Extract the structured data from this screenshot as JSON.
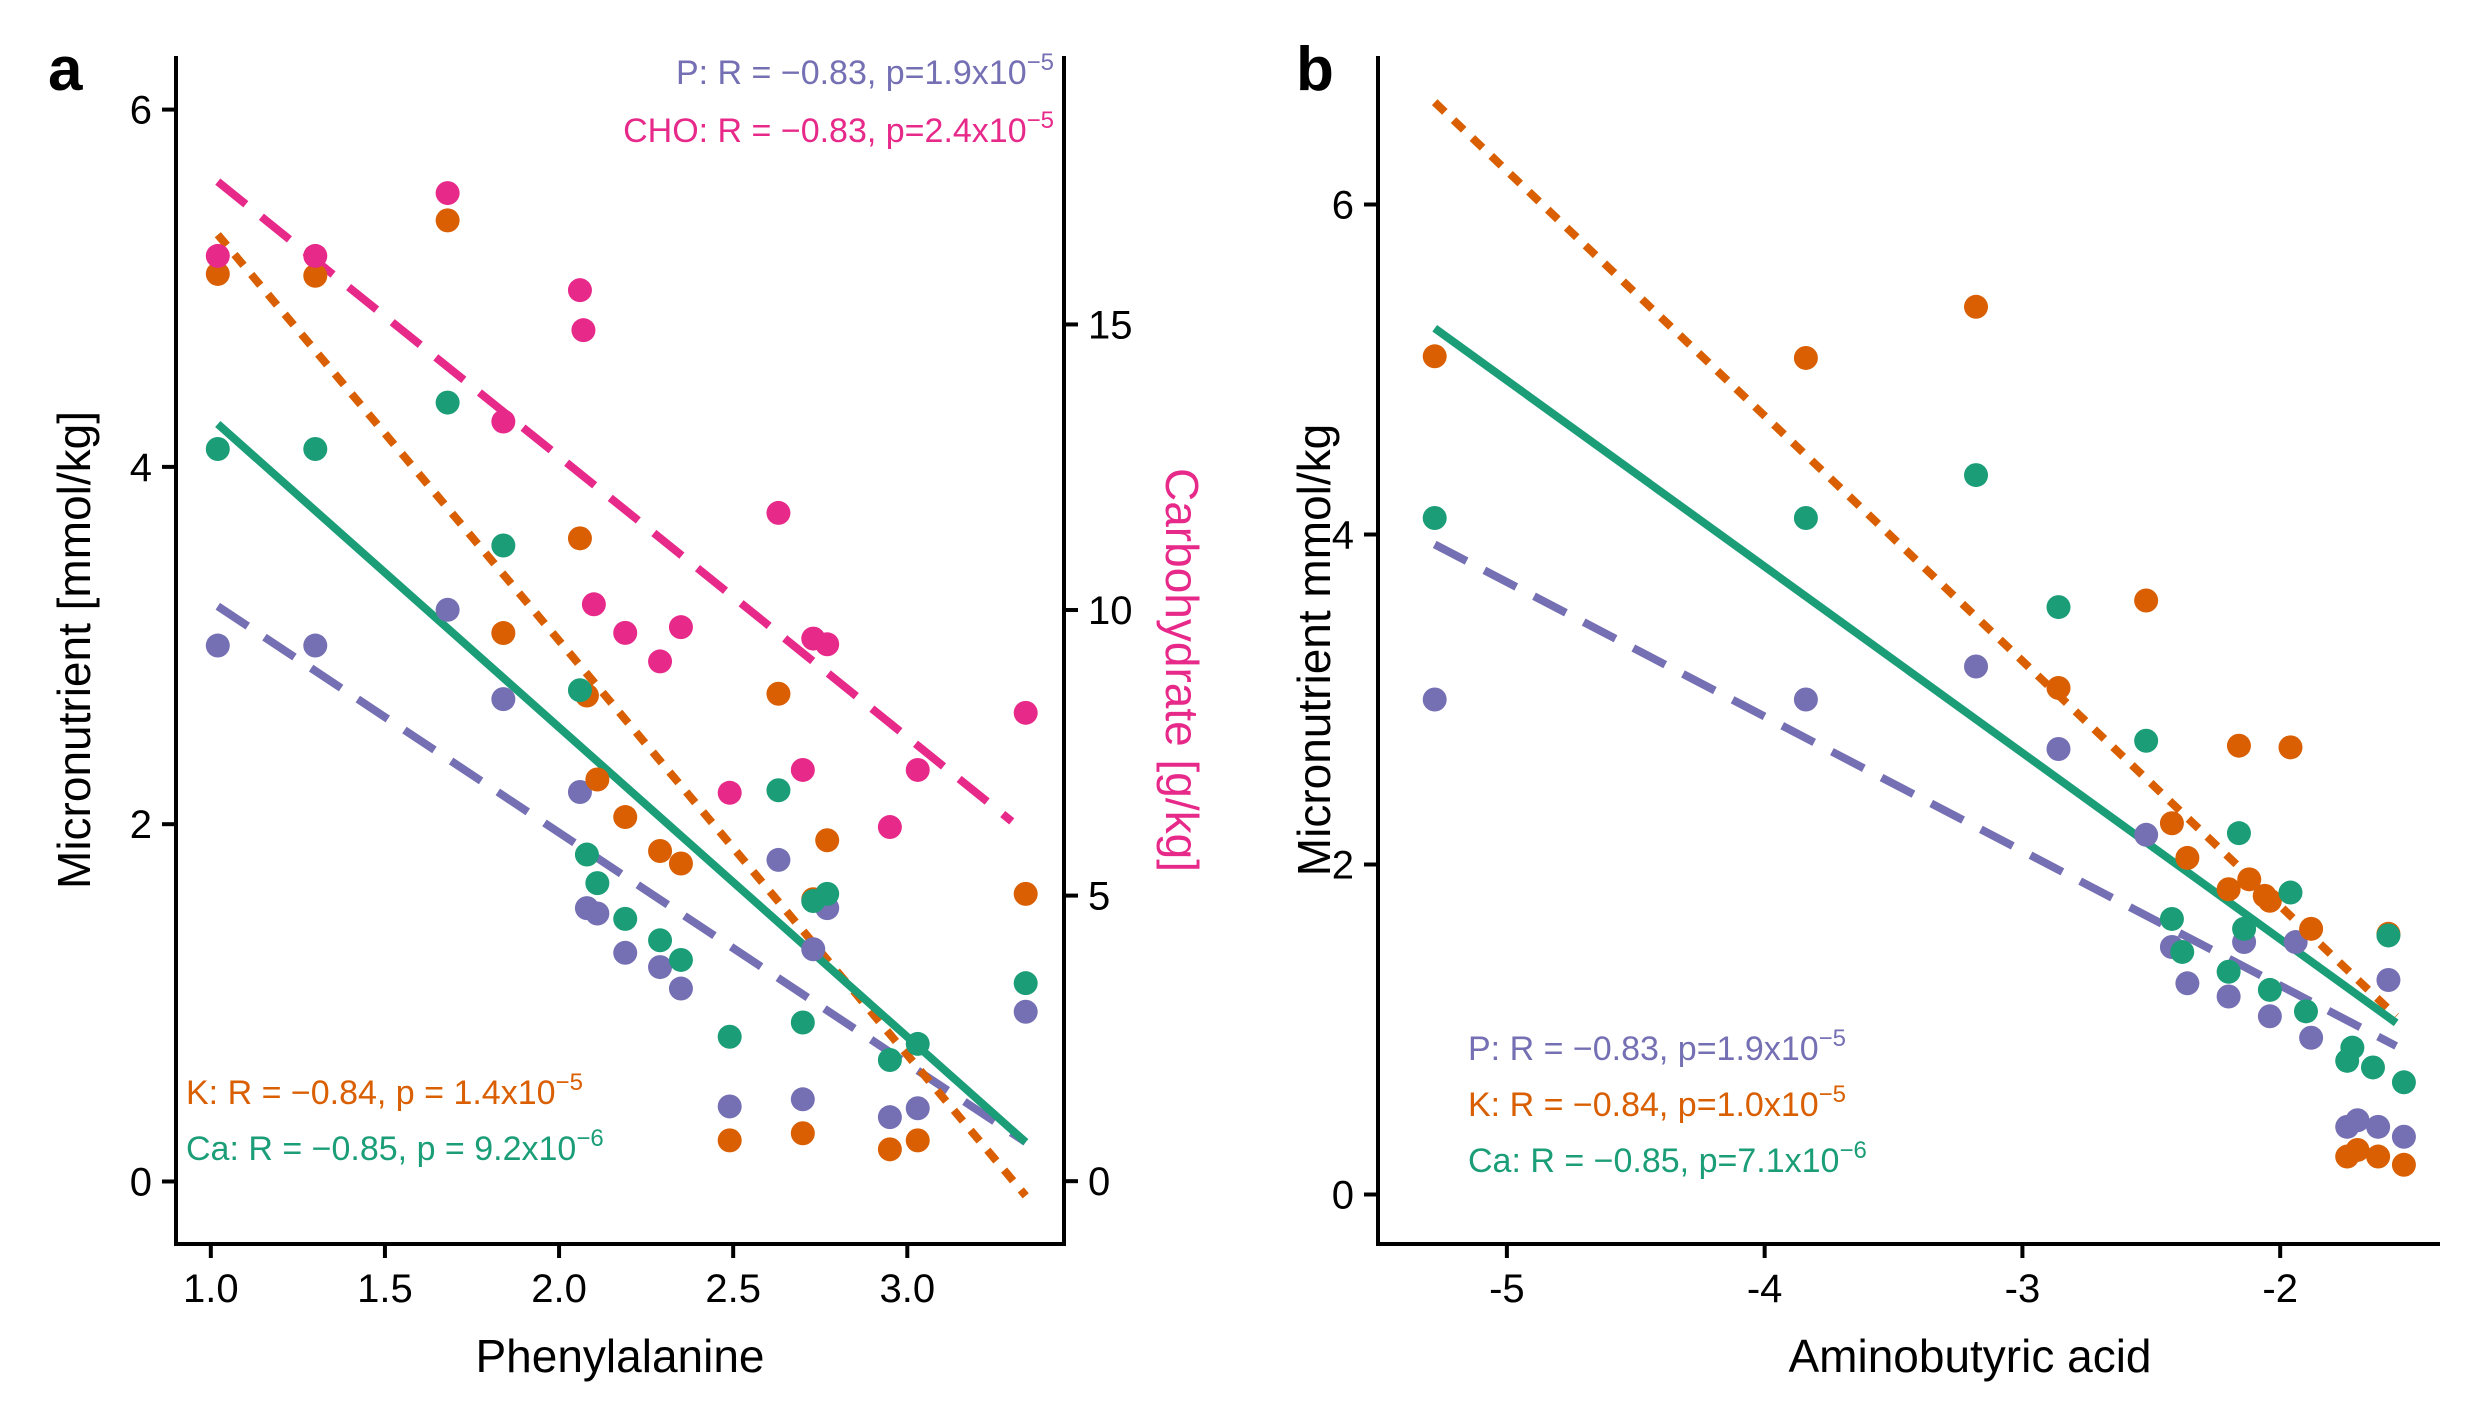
{
  "colors": {
    "P": "#7570b3",
    "K": "#d95f02",
    "Ca": "#1b9e77",
    "CHO": "#e7298a",
    "axis": "#000000"
  },
  "chart_data": [
    {
      "panel": "a",
      "type": "scatter",
      "xlabel": "Phenylalanine",
      "ylabel": "Micronutrient [mmol/kg]",
      "y2label": "Carbohydrate [g/kg]",
      "xlim": [
        0.9,
        3.45
      ],
      "ylim": [
        -0.35,
        6.3
      ],
      "y2lim": [
        -1.1,
        19.7
      ],
      "xticks": [
        1.0,
        1.5,
        2.0,
        2.5,
        3.0
      ],
      "xtick_labels": [
        "1.0",
        "1.5",
        "2.0",
        "2.5",
        "3.0"
      ],
      "yticks": [
        0,
        2,
        4,
        6
      ],
      "ytick_labels": [
        "0",
        "2",
        "4",
        "6"
      ],
      "y2ticks": [
        0,
        5,
        10,
        15
      ],
      "y2tick_labels": [
        "0",
        "5",
        "10",
        "15"
      ],
      "series": [
        {
          "name": "P",
          "color_key": "P",
          "axis": "left",
          "x": [
            1.02,
            1.3,
            1.68,
            1.84,
            2.06,
            2.08,
            2.11,
            2.19,
            2.29,
            2.35,
            2.49,
            2.63,
            2.7,
            2.73,
            2.77,
            2.95,
            3.03,
            3.34
          ],
          "y": [
            3.0,
            3.0,
            3.2,
            2.7,
            2.18,
            1.53,
            1.5,
            1.28,
            1.2,
            1.08,
            0.42,
            1.8,
            0.46,
            1.3,
            1.53,
            0.36,
            0.41,
            0.95
          ],
          "fit": {
            "x": [
              1.02,
              3.34
            ],
            "y": [
              3.22,
              0.22
            ],
            "dash": "long"
          }
        },
        {
          "name": "K",
          "color_key": "K",
          "axis": "left",
          "x": [
            1.02,
            1.3,
            1.68,
            1.84,
            2.06,
            2.08,
            2.11,
            2.19,
            2.29,
            2.35,
            2.49,
            2.63,
            2.7,
            2.73,
            2.77,
            2.95,
            3.03,
            3.34
          ],
          "y": [
            5.08,
            5.07,
            5.38,
            3.07,
            3.6,
            2.72,
            2.25,
            2.04,
            1.85,
            1.78,
            0.23,
            2.73,
            0.27,
            1.58,
            1.91,
            0.18,
            0.23,
            1.61
          ],
          "fit": {
            "x": [
              1.02,
              3.34
            ],
            "y": [
              5.3,
              -0.08
            ],
            "dash": "short"
          }
        },
        {
          "name": "Ca",
          "color_key": "Ca",
          "axis": "left",
          "x": [
            1.02,
            1.3,
            1.68,
            1.84,
            2.06,
            2.08,
            2.11,
            2.19,
            2.29,
            2.35,
            2.49,
            2.63,
            2.7,
            2.73,
            2.77,
            2.95,
            3.03,
            3.34
          ],
          "y": [
            4.1,
            4.1,
            4.36,
            3.56,
            2.75,
            1.83,
            1.67,
            1.47,
            1.35,
            1.24,
            0.81,
            2.19,
            0.89,
            1.57,
            1.61,
            0.68,
            0.77,
            1.11
          ],
          "fit": {
            "x": [
              1.02,
              3.34
            ],
            "y": [
              4.24,
              0.22
            ],
            "dash": "solid"
          }
        },
        {
          "name": "CHO",
          "color_key": "CHO",
          "axis": "right",
          "x": [
            1.02,
            1.3,
            1.68,
            1.84,
            2.06,
            2.07,
            2.1,
            2.19,
            2.29,
            2.35,
            2.49,
            2.63,
            2.7,
            2.73,
            2.77,
            2.95,
            3.03,
            3.34
          ],
          "y": [
            16.2,
            16.2,
            17.3,
            13.3,
            15.6,
            14.9,
            10.1,
            9.6,
            9.1,
            9.7,
            6.8,
            11.7,
            7.2,
            9.5,
            9.4,
            6.2,
            7.2,
            8.2
          ],
          "fit": {
            "x": [
              1.02,
              3.3
            ],
            "y": [
              17.5,
              6.3
            ],
            "dash": "long"
          }
        }
      ],
      "annotations": [
        {
          "key": "P",
          "label": "P:",
          "r": "R = −0.83,",
          "p": "p=1.9x10",
          "exp": "−5",
          "pos": "top-right"
        },
        {
          "key": "CHO",
          "label": "CHO:",
          "r": "R = −0.83,",
          "p": "p=2.4x10",
          "exp": "−5",
          "pos": "top-right"
        },
        {
          "key": "K",
          "label": "K:",
          "r": "R =  −0.84,",
          "p": "p =  1.4x10",
          "exp": "−5",
          "pos": "bottom-left"
        },
        {
          "key": "Ca",
          "label": "Ca:",
          "r": "R =  −0.85,",
          "p": "p =  9.2x10",
          "exp": "−6",
          "pos": "bottom-left"
        }
      ]
    },
    {
      "panel": "b",
      "type": "scatter",
      "xlabel": "Aminobutyric acid",
      "ylabel": "Micronutrient mmol/kg",
      "xlim": [
        -5.5,
        -1.38
      ],
      "ylim": [
        -0.3,
        6.9
      ],
      "xticks": [
        -5,
        -4,
        -3,
        -2
      ],
      "xtick_labels": [
        "-5",
        "-4",
        "-3",
        "-2"
      ],
      "yticks": [
        0,
        2,
        4,
        6
      ],
      "ytick_labels": [
        "0",
        "2",
        "4",
        "6"
      ],
      "series": [
        {
          "name": "P",
          "color_key": "P",
          "x": [
            -5.28,
            -3.84,
            -3.18,
            -2.86,
            -2.52,
            -2.42,
            -2.36,
            -2.2,
            -2.14,
            -2.04,
            -1.94,
            -1.88,
            -1.74,
            -1.7,
            -1.62,
            -1.58,
            -1.52
          ],
          "y": [
            3.0,
            3.0,
            3.2,
            2.7,
            2.18,
            1.5,
            1.28,
            1.2,
            1.53,
            1.08,
            1.53,
            0.95,
            0.41,
            0.45,
            0.41,
            1.3,
            0.35
          ],
          "fit": {
            "x": [
              -5.28,
              -1.55
            ],
            "y": [
              3.94,
              0.9
            ],
            "dash": "long"
          }
        },
        {
          "name": "K",
          "color_key": "K",
          "x": [
            -5.28,
            -3.84,
            -3.18,
            -2.86,
            -2.52,
            -2.42,
            -2.36,
            -2.2,
            -2.16,
            -2.12,
            -2.06,
            -2.04,
            -1.96,
            -1.88,
            -1.74,
            -1.7,
            -1.62,
            -1.58,
            -1.52
          ],
          "y": [
            5.08,
            5.07,
            5.38,
            3.07,
            3.6,
            2.25,
            2.04,
            1.85,
            2.72,
            1.91,
            1.81,
            1.78,
            2.71,
            1.61,
            0.23,
            0.27,
            0.23,
            1.58,
            0.18
          ],
          "fit": {
            "x": [
              -5.28,
              -1.55
            ],
            "y": [
              6.62,
              1.08
            ],
            "dash": "short"
          }
        },
        {
          "name": "Ca",
          "color_key": "Ca",
          "x": [
            -5.28,
            -3.84,
            -3.18,
            -2.86,
            -2.52,
            -2.42,
            -2.38,
            -2.2,
            -2.16,
            -2.14,
            -2.04,
            -1.96,
            -1.9,
            -1.74,
            -1.72,
            -1.64,
            -1.58,
            -1.52
          ],
          "y": [
            4.1,
            4.1,
            4.36,
            3.56,
            2.75,
            1.67,
            1.47,
            1.35,
            2.19,
            1.61,
            1.24,
            1.83,
            1.11,
            0.81,
            0.89,
            0.77,
            1.57,
            0.68
          ],
          "fit": {
            "x": [
              -5.28,
              -1.55
            ],
            "y": [
              5.25,
              1.04
            ],
            "dash": "solid"
          }
        }
      ],
      "annotations": [
        {
          "key": "P",
          "label": "P:",
          "r": "R =  −0.83,",
          "p": "p=1.9x10",
          "exp": "−5",
          "pos": "bottom-left"
        },
        {
          "key": "K",
          "label": "K:",
          "r": "R =  −0.84,",
          "p": "p=1.0x10",
          "exp": "−5",
          "pos": "bottom-left"
        },
        {
          "key": "Ca",
          "label": "Ca:",
          "r": "R =  −0.85,",
          "p": "p=7.1x10",
          "exp": "−6",
          "pos": "bottom-left"
        }
      ]
    }
  ]
}
